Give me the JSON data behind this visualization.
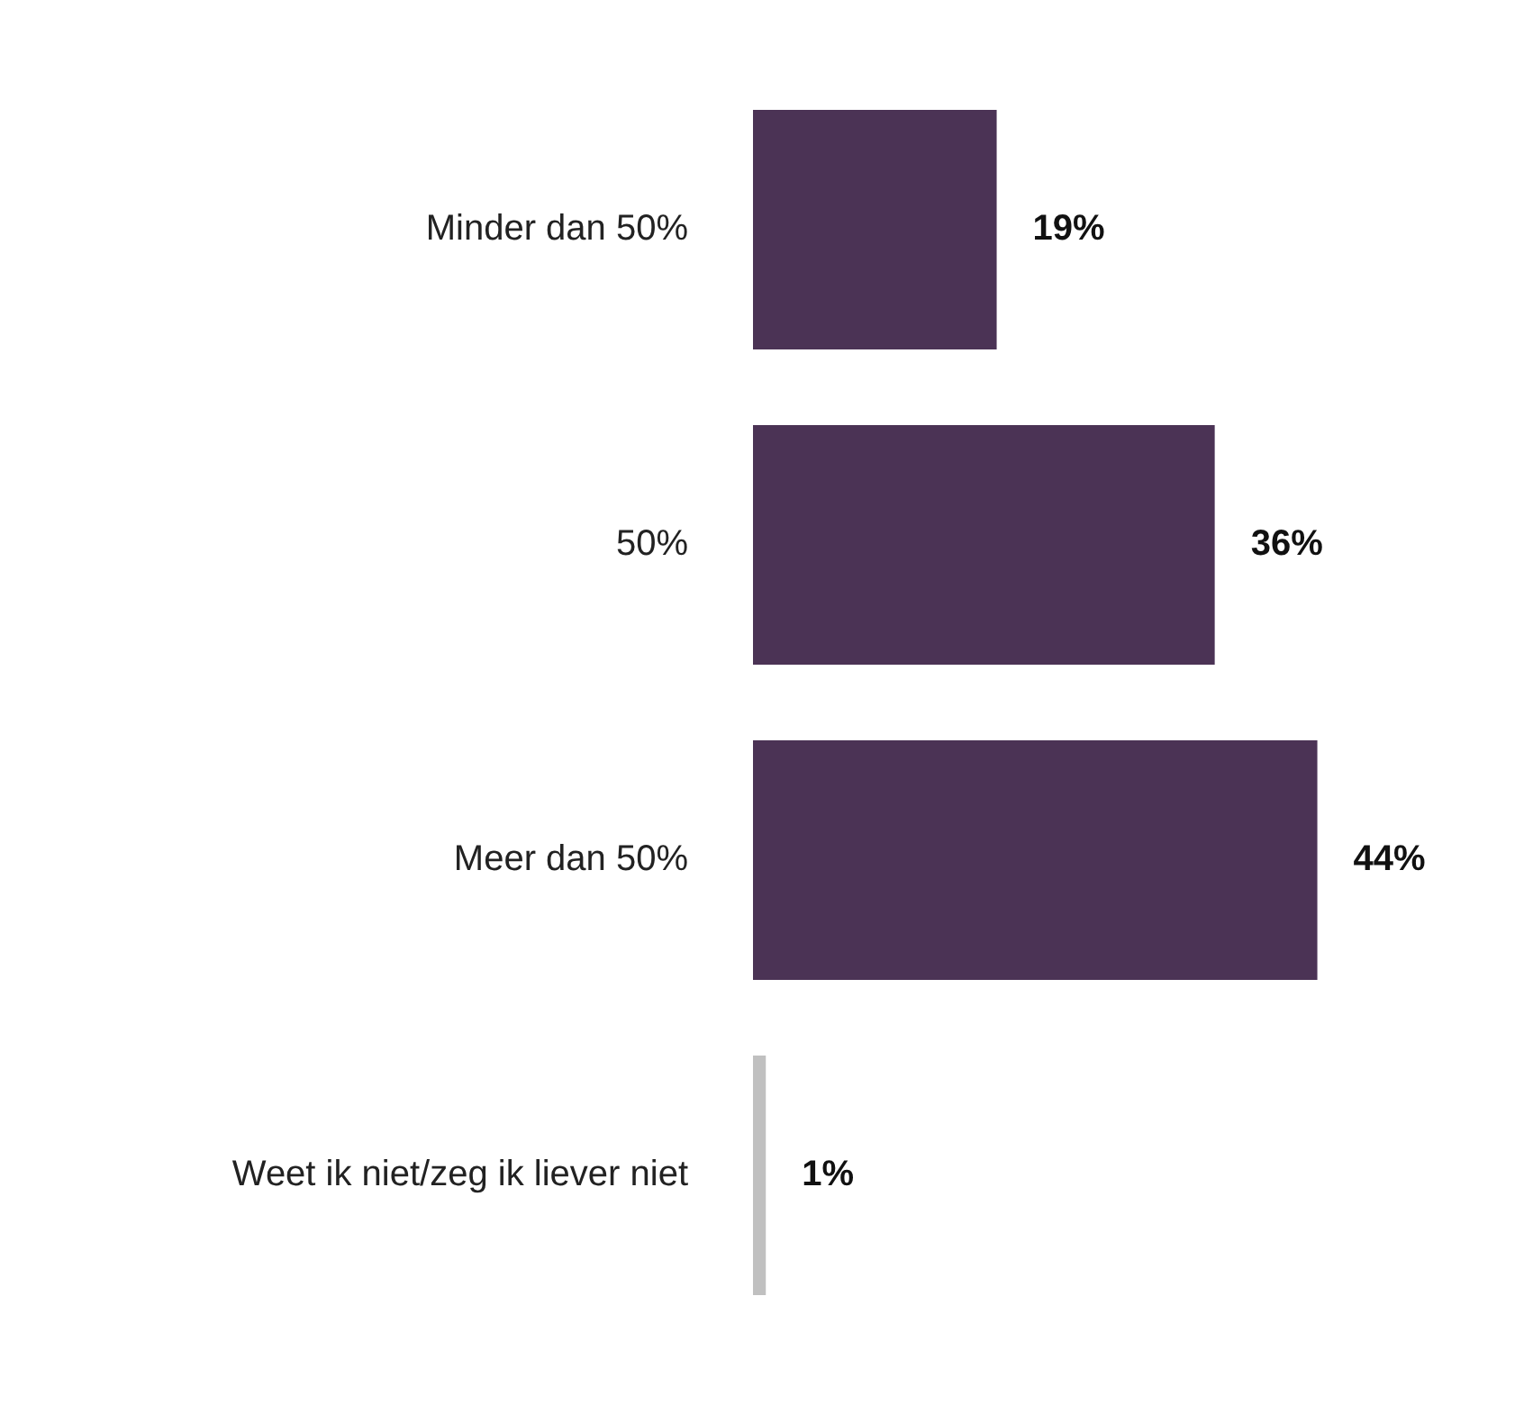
{
  "chart_data": {
    "type": "bar",
    "orientation": "horizontal",
    "categories": [
      "Minder dan 50%",
      "50%",
      "Meer dan 50%",
      "Weet ik niet/zeg ik liever niet"
    ],
    "values": [
      19,
      36,
      44,
      1
    ],
    "colors": [
      "#4b3355",
      "#4b3355",
      "#4b3355",
      "#c0c0c0"
    ],
    "value_labels": [
      "19%",
      "36%",
      "44%",
      "1%"
    ],
    "grid": false,
    "legend": false
  }
}
